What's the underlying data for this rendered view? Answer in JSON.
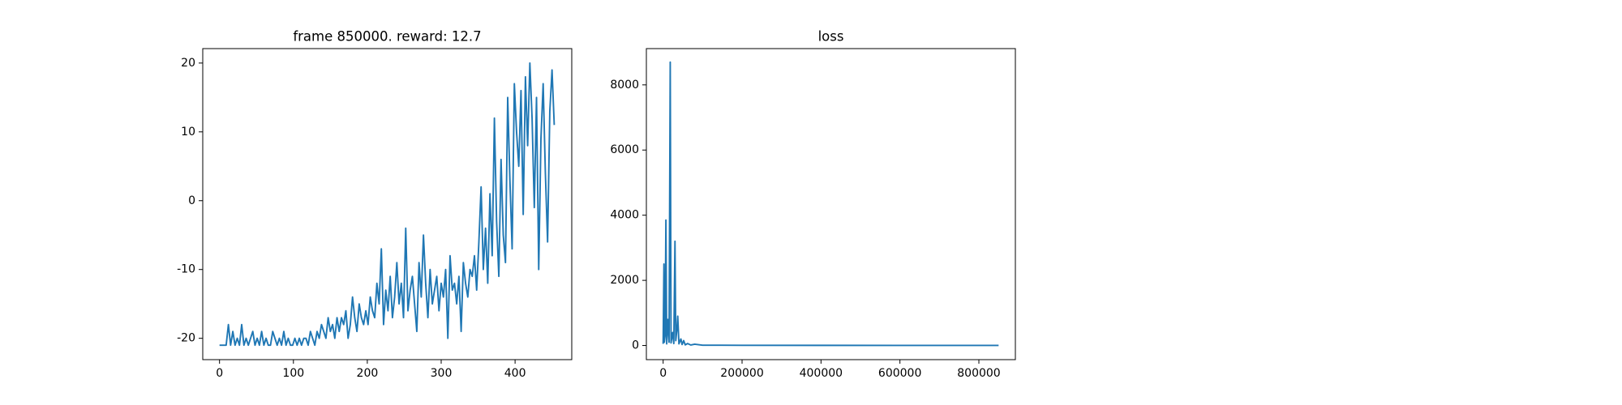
{
  "chart_data": [
    {
      "type": "line",
      "title": "frame 850000. reward: 12.7",
      "x": [
        0,
        3,
        6,
        9,
        12,
        15,
        18,
        21,
        24,
        27,
        30,
        33,
        36,
        39,
        42,
        45,
        48,
        51,
        54,
        57,
        60,
        63,
        66,
        69,
        72,
        75,
        78,
        81,
        84,
        87,
        90,
        93,
        96,
        99,
        102,
        105,
        108,
        111,
        114,
        117,
        120,
        123,
        126,
        129,
        132,
        135,
        138,
        141,
        144,
        147,
        150,
        153,
        156,
        159,
        162,
        165,
        168,
        171,
        174,
        177,
        180,
        183,
        186,
        189,
        192,
        195,
        198,
        201,
        204,
        207,
        210,
        213,
        216,
        219,
        222,
        225,
        228,
        231,
        234,
        237,
        240,
        243,
        246,
        249,
        252,
        255,
        258,
        261,
        264,
        267,
        270,
        273,
        276,
        279,
        282,
        285,
        288,
        291,
        294,
        297,
        300,
        303,
        306,
        309,
        312,
        315,
        318,
        321,
        324,
        327,
        330,
        333,
        336,
        339,
        342,
        345,
        348,
        351,
        354,
        357,
        360,
        363,
        366,
        369,
        372,
        375,
        378,
        381,
        384,
        387,
        390,
        393,
        396,
        399,
        402,
        405,
        408,
        411,
        414,
        417,
        420,
        423,
        426,
        429,
        432,
        435,
        438,
        441,
        444,
        447,
        450,
        453
      ],
      "series": [
        {
          "color": "#1f77b4",
          "values": [
            -21,
            -21,
            -21,
            -21,
            -18,
            -21,
            -19,
            -21,
            -20,
            -21,
            -18,
            -21,
            -20,
            -21,
            -20,
            -19,
            -21,
            -20,
            -21,
            -19,
            -21,
            -20,
            -21,
            -21,
            -19,
            -20,
            -21,
            -20,
            -21,
            -19,
            -21,
            -20,
            -21,
            -21,
            -20,
            -21,
            -20,
            -21,
            -20,
            -20,
            -21,
            -19,
            -20,
            -21,
            -19,
            -20,
            -18,
            -19,
            -20,
            -17,
            -19,
            -18,
            -20,
            -17,
            -19,
            -17,
            -18,
            -16,
            -20,
            -18,
            -14,
            -17,
            -19,
            -15,
            -17,
            -18,
            -16,
            -18,
            -14,
            -16,
            -17,
            -12,
            -15,
            -7,
            -18,
            -13,
            -16,
            -11,
            -17,
            -14,
            -9,
            -15,
            -12,
            -17,
            -4,
            -16,
            -13,
            -11,
            -15,
            -19,
            -9,
            -14,
            -5,
            -12,
            -17,
            -10,
            -15,
            -13,
            -11,
            -16,
            -12,
            -14,
            -10,
            -20,
            -8,
            -13,
            -12,
            -15,
            -11,
            -19,
            -9,
            -12,
            -14,
            -10,
            -11,
            -8,
            -13,
            -6,
            2,
            -10,
            -4,
            -12,
            1,
            -8,
            12,
            -3,
            -11,
            6,
            -5,
            -9,
            15,
            3,
            -7,
            17,
            10,
            5,
            16,
            -2,
            18,
            8,
            20,
            12,
            -1,
            15,
            -10,
            9,
            17,
            4,
            -6,
            13,
            19,
            11
          ]
        }
      ],
      "xlim": [
        -22.7,
        476.7
      ],
      "ylim": [
        -23.1,
        22.1
      ],
      "xticks": [
        0,
        100,
        200,
        300,
        400
      ],
      "yticks": [
        -20,
        -10,
        0,
        10,
        20
      ]
    },
    {
      "type": "line",
      "title": "loss",
      "x": [
        0,
        2000,
        3000,
        5000,
        7000,
        9000,
        12000,
        15000,
        18000,
        20000,
        24000,
        27000,
        30000,
        32000,
        35000,
        37000,
        40000,
        45000,
        48000,
        52000,
        56000,
        62000,
        70000,
        80000,
        100000,
        200000,
        400000,
        600000,
        850000
      ],
      "series": [
        {
          "color": "#1f77b4",
          "values": [
            50,
            2500,
            100,
            300,
            3850,
            50,
            800,
            100,
            8700,
            80,
            400,
            60,
            3200,
            150,
            500,
            900,
            50,
            200,
            30,
            150,
            20,
            60,
            15,
            40,
            10,
            5,
            4,
            3,
            3
          ]
        }
      ],
      "xlim": [
        -42500,
        892500
      ],
      "ylim": [
        -434,
        9114
      ],
      "xticks": [
        0,
        200000,
        400000,
        600000,
        800000
      ],
      "yticks": [
        0,
        2000,
        4000,
        6000,
        8000
      ]
    }
  ]
}
